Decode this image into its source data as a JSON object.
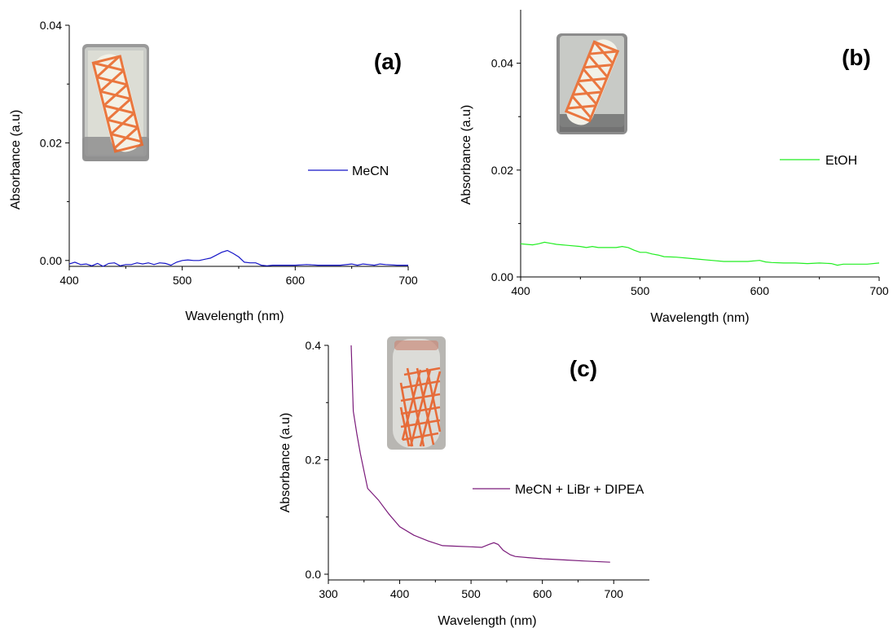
{
  "chart_data": [
    {
      "type": "line",
      "panel_label": "(a)",
      "xlabel": "Wavelength (nm)",
      "ylabel": "Absorbance (a.u)",
      "xlim": [
        400,
        700
      ],
      "ylim": [
        -0.001,
        0.04
      ],
      "xticks": [
        400,
        500,
        600,
        700
      ],
      "xtick_labels": [
        "400",
        "500",
        "600",
        "700"
      ],
      "yticks": [
        0.0,
        0.02,
        0.04
      ],
      "ytick_labels": [
        "0.00",
        "0.02",
        "0.04"
      ],
      "legend_position": "center-right",
      "grid": false,
      "series": [
        {
          "name": "MeCN",
          "color": "#1515c8",
          "x": [
            400,
            405,
            410,
            415,
            420,
            425,
            430,
            435,
            440,
            445,
            450,
            455,
            460,
            465,
            470,
            475,
            480,
            485,
            490,
            495,
            500,
            505,
            510,
            515,
            520,
            525,
            530,
            535,
            540,
            545,
            550,
            555,
            560,
            565,
            570,
            575,
            580,
            590,
            600,
            610,
            620,
            630,
            640,
            650,
            655,
            660,
            665,
            670,
            675,
            680,
            690,
            700
          ],
          "y": [
            -0.0006,
            -0.0003,
            -0.0007,
            -0.0006,
            -0.0009,
            -0.0005,
            -0.001,
            -0.0005,
            -0.0004,
            -0.0009,
            -0.0007,
            -0.0007,
            -0.0004,
            -0.0006,
            -0.0004,
            -0.0007,
            -0.0004,
            -0.0005,
            -0.0008,
            -0.0003,
            0.0,
            0.0001,
            0.0,
            0.0,
            0.0002,
            0.0004,
            0.0009,
            0.0014,
            0.0017,
            0.0012,
            0.0006,
            -0.0003,
            -0.0004,
            -0.0004,
            -0.0008,
            -0.0009,
            -0.0008,
            -0.0008,
            -0.0008,
            -0.0007,
            -0.0008,
            -0.0008,
            -0.0008,
            -0.0006,
            -0.0008,
            -0.0006,
            -0.0007,
            -0.0008,
            -0.0006,
            -0.0007,
            -0.0008,
            -0.0008
          ]
        }
      ]
    },
    {
      "type": "line",
      "panel_label": "(b)",
      "xlabel": "Wavelength (nm)",
      "ylabel": "Absorbance (a.u)",
      "xlim": [
        400,
        700
      ],
      "ylim": [
        0.0,
        0.05
      ],
      "xticks": [
        400,
        500,
        600,
        700
      ],
      "xtick_labels": [
        "400",
        "500",
        "600",
        "700"
      ],
      "yticks": [
        0.0,
        0.02,
        0.04
      ],
      "ytick_labels": [
        "0.00",
        "0.02",
        "0.04"
      ],
      "legend_position": "center-right",
      "grid": false,
      "series": [
        {
          "name": "EtOH",
          "color": "#22ee22",
          "x": [
            400,
            405,
            410,
            415,
            420,
            425,
            430,
            440,
            450,
            455,
            460,
            465,
            470,
            480,
            485,
            490,
            495,
            500,
            505,
            510,
            515,
            520,
            530,
            540,
            550,
            560,
            570,
            580,
            590,
            600,
            605,
            610,
            620,
            630,
            640,
            650,
            660,
            665,
            670,
            680,
            690,
            700
          ],
          "y": [
            0.0062,
            0.0061,
            0.006,
            0.0062,
            0.0065,
            0.0063,
            0.0061,
            0.0059,
            0.0057,
            0.0055,
            0.0057,
            0.0055,
            0.0055,
            0.0055,
            0.0057,
            0.0055,
            0.005,
            0.0046,
            0.0046,
            0.0043,
            0.0041,
            0.0038,
            0.0037,
            0.0035,
            0.0033,
            0.0031,
            0.0029,
            0.0029,
            0.0029,
            0.0031,
            0.0028,
            0.0027,
            0.0026,
            0.0026,
            0.0025,
            0.0026,
            0.0025,
            0.0022,
            0.0024,
            0.0024,
            0.0024,
            0.0026
          ]
        }
      ]
    },
    {
      "type": "line",
      "panel_label": "(c)",
      "xlabel": "Wavelength (nm)",
      "ylabel": "Absorbance (a.u)",
      "xlim": [
        300,
        750
      ],
      "ylim": [
        -0.01,
        0.4
      ],
      "xticks": [
        300,
        400,
        500,
        600,
        700
      ],
      "xtick_labels": [
        "300",
        "400",
        "500",
        "600",
        "700"
      ],
      "yticks": [
        0.0,
        0.2,
        0.4
      ],
      "ytick_labels": [
        "0.0",
        "0.2",
        "0.4"
      ],
      "legend_position": "center-right",
      "grid": false,
      "series": [
        {
          "name": "MeCN + LiBr + DIPEA",
          "color": "#7a1a7a",
          "x": [
            332,
            335,
            340,
            345,
            355,
            370,
            385,
            400,
            420,
            440,
            460,
            480,
            500,
            515,
            525,
            532,
            538,
            545,
            555,
            562,
            580,
            600,
            630,
            660,
            695
          ],
          "y": [
            0.4,
            0.285,
            0.245,
            0.21,
            0.15,
            0.13,
            0.105,
            0.083,
            0.068,
            0.058,
            0.05,
            0.049,
            0.048,
            0.047,
            0.052,
            0.055,
            0.052,
            0.042,
            0.034,
            0.031,
            0.029,
            0.027,
            0.025,
            0.023,
            0.021
          ]
        }
      ]
    }
  ]
}
